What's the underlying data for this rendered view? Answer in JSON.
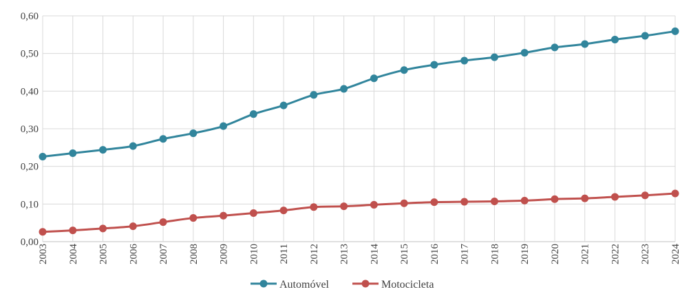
{
  "chart_data": {
    "type": "line",
    "x": [
      "2003",
      "2004",
      "2005",
      "2006",
      "2007",
      "2008",
      "2009",
      "2010",
      "2011",
      "2012",
      "2013",
      "2014",
      "2015",
      "2016",
      "2017",
      "2018",
      "2019",
      "2020",
      "2021",
      "2022",
      "2023",
      "2024"
    ],
    "ylim": [
      0,
      0.6
    ],
    "yticks": [
      "0,00",
      "0,10",
      "0,20",
      "0,30",
      "0,40",
      "0,50",
      "0,60"
    ],
    "grid": true,
    "legend_position": "bottom",
    "series": [
      {
        "name": "Automóvel",
        "color": "#31859c",
        "values": [
          0.226,
          0.235,
          0.244,
          0.254,
          0.273,
          0.288,
          0.307,
          0.339,
          0.362,
          0.39,
          0.406,
          0.434,
          0.456,
          0.47,
          0.481,
          0.49,
          0.502,
          0.516,
          0.525,
          0.537,
          0.547,
          0.559
        ]
      },
      {
        "name": "Motocicleta",
        "color": "#c0504d",
        "values": [
          0.026,
          0.03,
          0.035,
          0.041,
          0.052,
          0.063,
          0.069,
          0.076,
          0.083,
          0.092,
          0.094,
          0.098,
          0.102,
          0.105,
          0.106,
          0.107,
          0.109,
          0.113,
          0.115,
          0.119,
          0.123,
          0.128
        ]
      }
    ]
  }
}
